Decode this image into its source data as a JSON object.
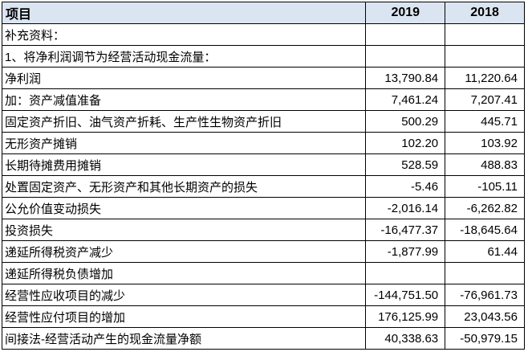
{
  "header": {
    "item": "项目",
    "y2019": "2019",
    "y2018": "2018"
  },
  "rows": [
    {
      "label": "补充资料：",
      "v2019": "",
      "v2018": ""
    },
    {
      "label": "1、将净利润调节为经营活动现金流量：",
      "v2019": "",
      "v2018": ""
    },
    {
      "label": "净利润",
      "v2019": "13,790.84",
      "v2018": "11,220.64"
    },
    {
      "label": "加：资产减值准备",
      "v2019": "7,461.24",
      "v2018": "7,207.41"
    },
    {
      "label": "固定资产折旧、油气资产折耗、生产性生物资产折旧",
      "v2019": "500.29",
      "v2018": "445.71"
    },
    {
      "label": "无形资产摊销",
      "v2019": "102.20",
      "v2018": "103.92"
    },
    {
      "label": "长期待摊费用摊销",
      "v2019": "528.59",
      "v2018": "488.83"
    },
    {
      "label": "处置固定资产、无形资产和其他长期资产的损失",
      "v2019": "-5.46",
      "v2018": "-105.11"
    },
    {
      "label": "公允价值变动损失",
      "v2019": "-2,016.14",
      "v2018": "-6,262.82"
    },
    {
      "label": "投资损失",
      "v2019": "-16,477.37",
      "v2018": "-18,645.64"
    },
    {
      "label": "递延所得税资产减少",
      "v2019": "-1,877.99",
      "v2018": "61.44"
    },
    {
      "label": "递延所得税负债增加",
      "v2019": "",
      "v2018": ""
    },
    {
      "label": "经营性应收项目的减少",
      "v2019": "-144,751.50",
      "v2018": "-76,961.73"
    },
    {
      "label": "经营性应付项目的增加",
      "v2019": "176,125.99",
      "v2018": "23,043.56"
    },
    {
      "label": "间接法-经营活动产生的现金流量净额",
      "v2019": "40,338.63",
      "v2018": "-50,979.15"
    }
  ]
}
